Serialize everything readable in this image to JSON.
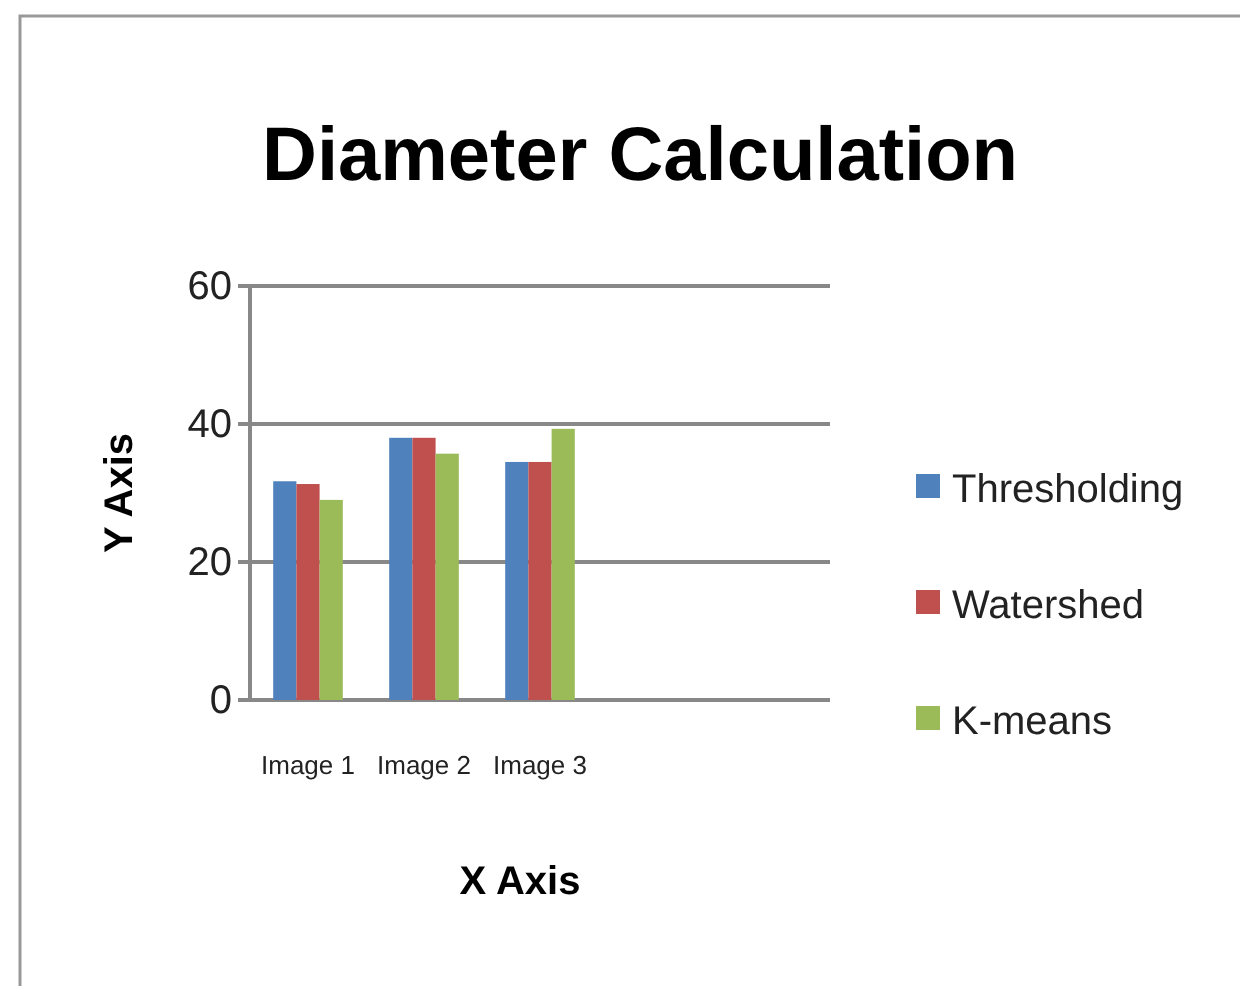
{
  "chart_data": {
    "type": "bar",
    "title": "Diameter Calculation",
    "xlabel": "X Axis",
    "ylabel": "Y Axis",
    "categories": [
      "Image 1",
      "Image 2",
      "Image 3",
      null,
      null
    ],
    "series": [
      {
        "name": "Thresholding",
        "color": "#4f81bd",
        "values": [
          31.7,
          38,
          34.5,
          null,
          null
        ]
      },
      {
        "name": "Watershed",
        "color": "#c0504d",
        "values": [
          31.3,
          38,
          34.5,
          null,
          null
        ]
      },
      {
        "name": "K-means",
        "color": "#9bbb59",
        "values": [
          29,
          35.7,
          39.3,
          null,
          null
        ]
      }
    ],
    "ylim": [
      0,
      60
    ],
    "yticks": [
      0,
      20,
      40,
      60
    ],
    "grid": "y",
    "legend": "right"
  }
}
